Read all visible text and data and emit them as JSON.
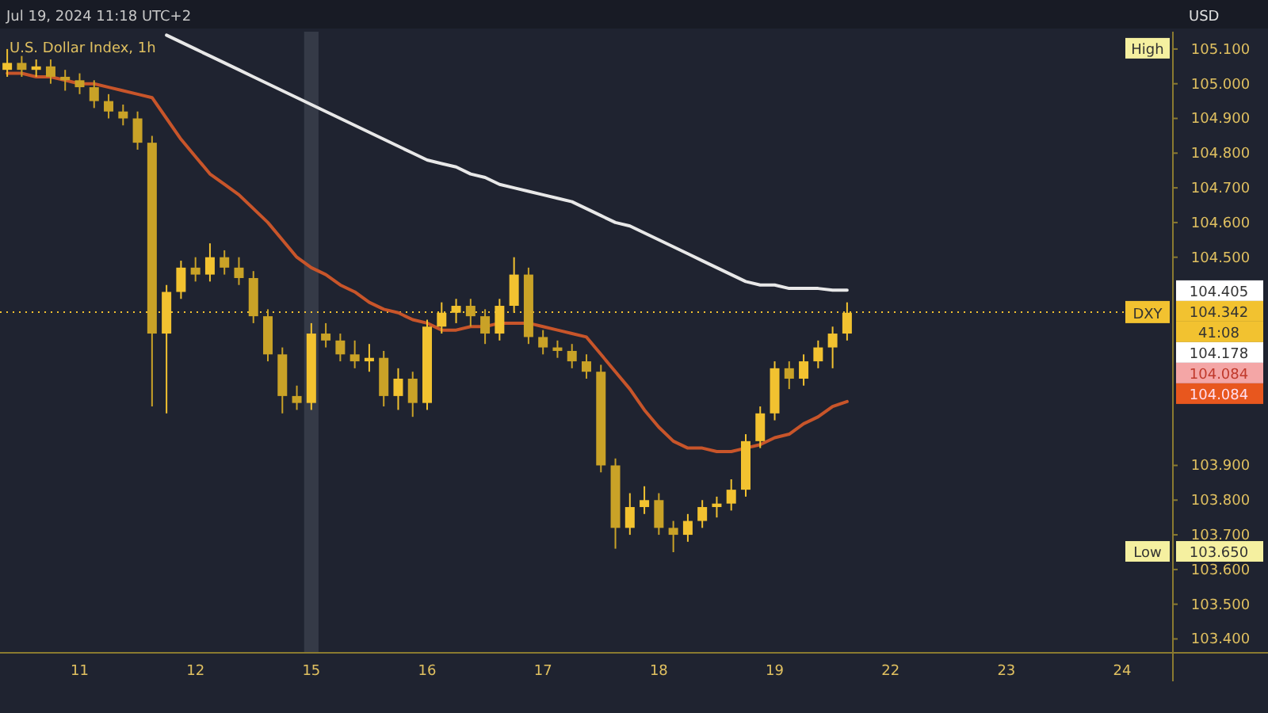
{
  "chart_data": {
    "type": "candlestick",
    "title": "U.S. Dollar Index, 1h",
    "subtitle": "Jul 19, 2024 11:18 UTC+2",
    "colors": [
      "#f2c230",
      "#c9a227",
      "#f2c230",
      "#c9a227",
      "#c9a227",
      "#c9a227",
      "#c9a227",
      "#c9a227",
      "#c9a227",
      "#c9a227",
      "#c9a227",
      "#f2c230",
      "#f2c230",
      "#c9a227",
      "#f2c230",
      "#c9a227",
      "#c9a227",
      "#c9a227",
      "#c9a227",
      "#c9a227",
      "#c9a227",
      "#f2c230",
      "#c9a227",
      "#c9a227",
      "#c9a227",
      "#f2c230",
      "#c9a227",
      "#f2c230",
      "#c9a227",
      "#f2c230",
      "#f2c230",
      "#f2c230",
      "#c9a227",
      "#c9a227",
      "#f2c230",
      "#f2c230",
      "#c9a227",
      "#c9a227",
      "#c9a227",
      "#c9a227",
      "#c9a227",
      "#c9a227",
      "#c9a227",
      "#f2c230",
      "#f2c230",
      "#c9a227",
      "#c9a227",
      "#f2c230",
      "#f2c230",
      "#f2c230",
      "#f2c230",
      "#f2c230",
      "#f2c230",
      "#f2c230",
      "#c9a227",
      "#f2c230",
      "#f2c230",
      "#f2c230",
      "#f2c230",
      null,
      null,
      null,
      null,
      null,
      null,
      null,
      null,
      null,
      null,
      null,
      null,
      null,
      null,
      null,
      null,
      null,
      null,
      null,
      null,
      null,
      null
    ],
    "categories": [
      null,
      null,
      null,
      null,
      null,
      "11",
      null,
      null,
      null,
      null,
      null,
      null,
      null,
      "12",
      null,
      null,
      null,
      null,
      null,
      null,
      null,
      "15",
      null,
      null,
      null,
      null,
      null,
      null,
      null,
      "16",
      null,
      null,
      null,
      null,
      null,
      null,
      null,
      "17",
      null,
      null,
      null,
      null,
      null,
      null,
      null,
      "18",
      null,
      null,
      null,
      null,
      null,
      null,
      null,
      "19",
      null,
      null,
      null,
      null,
      null,
      null,
      null,
      "22",
      null,
      null,
      null,
      null,
      null,
      null,
      null,
      "23",
      null,
      null,
      null,
      null,
      null,
      null,
      null,
      "24",
      null,
      null,
      null
    ],
    "ohlc": [
      [
        105.04,
        105.1,
        105.02,
        105.06
      ],
      [
        105.06,
        105.08,
        105.02,
        105.04
      ],
      [
        105.04,
        105.07,
        105.02,
        105.05
      ],
      [
        105.05,
        105.07,
        105.0,
        105.02
      ],
      [
        105.02,
        105.04,
        104.98,
        105.01
      ],
      [
        105.01,
        105.03,
        104.97,
        104.99
      ],
      [
        104.99,
        105.01,
        104.93,
        104.95
      ],
      [
        104.95,
        104.97,
        104.9,
        104.92
      ],
      [
        104.92,
        104.94,
        104.88,
        104.9
      ],
      [
        104.9,
        104.92,
        104.81,
        104.83
      ],
      [
        104.83,
        104.85,
        104.07,
        104.28
      ],
      [
        104.28,
        104.42,
        104.05,
        104.4
      ],
      [
        104.4,
        104.49,
        104.38,
        104.47
      ],
      [
        104.47,
        104.5,
        104.43,
        104.45
      ],
      [
        104.45,
        104.54,
        104.43,
        104.5
      ],
      [
        104.5,
        104.52,
        104.45,
        104.47
      ],
      [
        104.47,
        104.5,
        104.42,
        104.44
      ],
      [
        104.44,
        104.46,
        104.31,
        104.33
      ],
      [
        104.33,
        104.35,
        104.2,
        104.22
      ],
      [
        104.22,
        104.24,
        104.05,
        104.1
      ],
      [
        104.1,
        104.13,
        104.06,
        104.08
      ],
      [
        104.08,
        104.31,
        104.06,
        104.28
      ],
      [
        104.28,
        104.31,
        104.24,
        104.26
      ],
      [
        104.26,
        104.28,
        104.2,
        104.22
      ],
      [
        104.22,
        104.26,
        104.18,
        104.2
      ],
      [
        104.2,
        104.25,
        104.17,
        104.21
      ],
      [
        104.21,
        104.23,
        104.07,
        104.1
      ],
      [
        104.1,
        104.18,
        104.06,
        104.15
      ],
      [
        104.15,
        104.17,
        104.04,
        104.08
      ],
      [
        104.08,
        104.32,
        104.06,
        104.3
      ],
      [
        104.3,
        104.37,
        104.28,
        104.34
      ],
      [
        104.34,
        104.38,
        104.31,
        104.36
      ],
      [
        104.36,
        104.38,
        104.3,
        104.33
      ],
      [
        104.33,
        104.35,
        104.25,
        104.28
      ],
      [
        104.28,
        104.38,
        104.26,
        104.36
      ],
      [
        104.36,
        104.5,
        104.34,
        104.45
      ],
      [
        104.45,
        104.47,
        104.25,
        104.27
      ],
      [
        104.27,
        104.29,
        104.22,
        104.24
      ],
      [
        104.24,
        104.26,
        104.21,
        104.23
      ],
      [
        104.23,
        104.25,
        104.18,
        104.2
      ],
      [
        104.2,
        104.22,
        104.15,
        104.17
      ],
      [
        104.17,
        104.19,
        103.88,
        103.9
      ],
      [
        103.9,
        103.92,
        103.66,
        103.72
      ],
      [
        103.72,
        103.82,
        103.7,
        103.78
      ],
      [
        103.78,
        103.84,
        103.76,
        103.8
      ],
      [
        103.8,
        103.82,
        103.7,
        103.72
      ],
      [
        103.72,
        103.74,
        103.65,
        103.7
      ],
      [
        103.7,
        103.76,
        103.68,
        103.74
      ],
      [
        103.74,
        103.8,
        103.72,
        103.78
      ],
      [
        103.78,
        103.81,
        103.75,
        103.79
      ],
      [
        103.79,
        103.86,
        103.77,
        103.83
      ],
      [
        103.83,
        103.99,
        103.81,
        103.97
      ],
      [
        103.97,
        104.07,
        103.95,
        104.05
      ],
      [
        104.05,
        104.2,
        104.03,
        104.18
      ],
      [
        104.18,
        104.2,
        104.12,
        104.15
      ],
      [
        104.15,
        104.22,
        104.13,
        104.2
      ],
      [
        104.2,
        104.26,
        104.18,
        104.24
      ],
      [
        104.24,
        104.3,
        104.18,
        104.28
      ],
      [
        104.28,
        104.37,
        104.26,
        104.34
      ],
      null,
      null,
      null,
      null,
      null,
      null,
      null,
      null,
      null,
      null,
      null,
      null,
      null,
      null,
      null,
      null,
      null,
      null,
      null,
      null,
      null,
      null
    ],
    "series": [
      {
        "type": "line",
        "color": "#e8e8e8",
        "values": [
          null,
          null,
          null,
          null,
          null,
          null,
          null,
          null,
          null,
          null,
          null,
          105.14,
          105.12,
          105.1,
          105.08,
          105.06,
          105.04,
          105.02,
          105.0,
          104.98,
          104.96,
          104.94,
          104.92,
          104.9,
          104.88,
          104.86,
          104.84,
          104.82,
          104.8,
          104.78,
          104.77,
          104.76,
          104.74,
          104.73,
          104.71,
          104.7,
          104.69,
          104.68,
          104.67,
          104.66,
          104.64,
          104.62,
          104.6,
          104.59,
          104.57,
          104.55,
          104.53,
          104.51,
          104.49,
          104.47,
          104.45,
          104.43,
          104.42,
          104.42,
          104.41,
          104.41,
          104.41,
          104.405,
          104.405,
          null,
          null,
          null,
          null,
          null,
          null,
          null,
          null,
          null,
          null,
          null,
          null,
          null,
          null,
          null,
          null,
          null,
          null,
          null,
          null,
          null,
          null
        ]
      },
      {
        "type": "line",
        "color": "#c8552a",
        "values": [
          105.03,
          105.03,
          105.02,
          105.02,
          105.01,
          105.0,
          105.0,
          104.99,
          104.98,
          104.97,
          104.96,
          104.9,
          104.84,
          104.79,
          104.74,
          104.71,
          104.68,
          104.64,
          104.6,
          104.55,
          104.5,
          104.47,
          104.45,
          104.42,
          104.4,
          104.37,
          104.35,
          104.34,
          104.32,
          104.31,
          104.29,
          104.29,
          104.3,
          104.3,
          104.31,
          104.31,
          104.31,
          104.3,
          104.29,
          104.28,
          104.27,
          104.22,
          104.17,
          104.12,
          104.06,
          104.01,
          103.97,
          103.95,
          103.95,
          103.94,
          103.94,
          103.95,
          103.96,
          103.98,
          103.99,
          104.02,
          104.04,
          104.07,
          104.084,
          null,
          null,
          null,
          null,
          null,
          null,
          null,
          null,
          null,
          null,
          null,
          null,
          null,
          null,
          null,
          null,
          null,
          null,
          null,
          null,
          null,
          null
        ]
      }
    ],
    "ylim": [
      103.36,
      105.15
    ],
    "yticks": [
      {
        "value": 103.4,
        "label": "103.400"
      },
      {
        "value": 103.5,
        "label": "103.500"
      },
      {
        "value": 103.6,
        "label": "103.600"
      },
      {
        "value": 103.7,
        "label": "103.700"
      },
      {
        "value": 103.8,
        "label": "103.800"
      },
      {
        "value": 103.9,
        "label": "103.900"
      },
      {
        "value": 104.5,
        "label": "104.500"
      },
      {
        "value": 104.6,
        "label": "104.600"
      },
      {
        "value": 104.7,
        "label": "104.700"
      },
      {
        "value": 104.8,
        "label": "104.800"
      },
      {
        "value": 104.9,
        "label": "104.900"
      },
      {
        "value": 105.0,
        "label": "105.000"
      },
      {
        "value": 105.1,
        "label": "105.100"
      }
    ],
    "ref_lines": [
      {
        "axis": "y",
        "value": 104.342,
        "label": "DXY",
        "color": "#f2c230",
        "line_style": "dotted"
      }
    ],
    "bands": [
      {
        "axis": "x",
        "from": "15",
        "to": "15",
        "color": "#353a47"
      }
    ],
    "annotations": [
      "USD",
      {
        "text": "High",
        "y": 105.1
      },
      "104.405",
      "104.342",
      "41:08",
      "104.178",
      "104.084",
      "104.084",
      {
        "text": "Low",
        "y": 103.65
      },
      "103.650"
    ]
  }
}
